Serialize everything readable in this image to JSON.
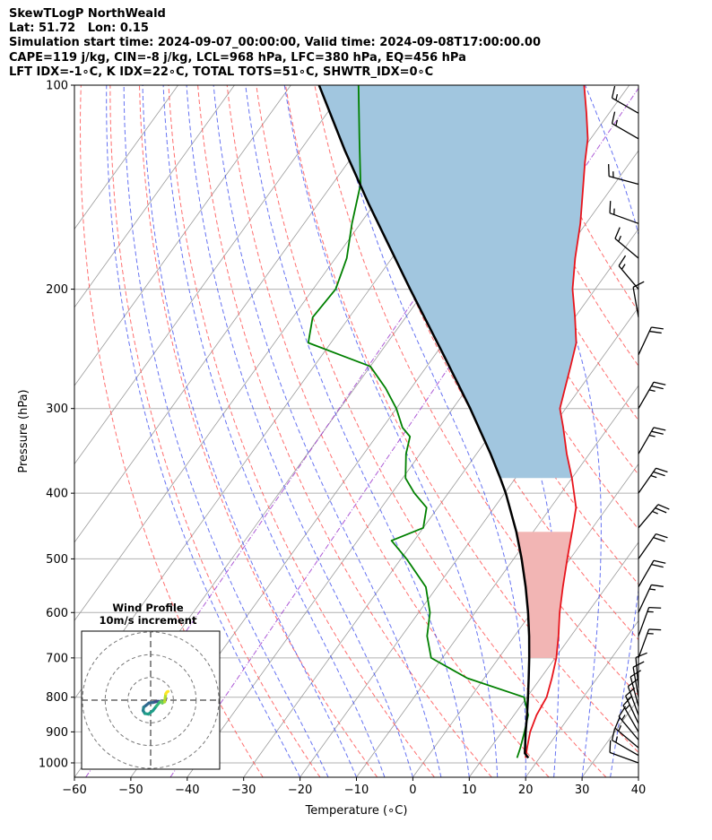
{
  "header": {
    "line1": "SkewTLogP NorthWeald",
    "line2": "Lat: 51.72   Lon: 0.15",
    "line3": "Simulation start time: 2024-09-07_00:00:00, Valid time: 2024-09-08T17:00:00.00",
    "line4": "CAPE=119 j/kg, CIN=-8 j/kg, LCL=968 hPa, LFC=380 hPa, EQ=456 hPa",
    "line5": "LFT IDX=-1∘C, K IDX=22∘C, TOTAL TOTS=51∘C, SHWTR_IDX=0∘C"
  },
  "chart_data": {
    "type": "line",
    "subtype": "skew-T log-P diagram",
    "xlabel": "Temperature (∘C)",
    "ylabel": "Pressure (hPa)",
    "xlim": [
      -60,
      40
    ],
    "ylim": [
      1050,
      100
    ],
    "x_ticks": [
      -60,
      -50,
      -40,
      -30,
      -20,
      -10,
      0,
      10,
      20,
      30,
      40
    ],
    "y_ticks": [
      1000,
      900,
      800,
      700,
      600,
      500,
      400,
      300,
      200,
      100
    ],
    "series": [
      {
        "name": "Temperature",
        "color": "#e8141c",
        "points": [
          {
            "p": 983,
            "t": 17.5
          },
          {
            "p": 950,
            "t": 16.5
          },
          {
            "p": 900,
            "t": 15.0
          },
          {
            "p": 850,
            "t": 14.0
          },
          {
            "p": 800,
            "t": 13.5
          },
          {
            "p": 750,
            "t": 12.0
          },
          {
            "p": 700,
            "t": 10.2
          },
          {
            "p": 650,
            "t": 7.8
          },
          {
            "p": 600,
            "t": 5.0
          },
          {
            "p": 550,
            "t": 2.3
          },
          {
            "p": 500,
            "t": -0.5
          },
          {
            "p": 450,
            "t": -3.5
          },
          {
            "p": 420,
            "t": -5.5
          },
          {
            "p": 380,
            "t": -10.0
          },
          {
            "p": 350,
            "t": -14.0
          },
          {
            "p": 320,
            "t": -18.0
          },
          {
            "p": 300,
            "t": -21.0
          },
          {
            "p": 280,
            "t": -22.7
          },
          {
            "p": 260,
            "t": -24.5
          },
          {
            "p": 240,
            "t": -26.5
          },
          {
            "p": 220,
            "t": -30.0
          },
          {
            "p": 200,
            "t": -34.0
          },
          {
            "p": 180,
            "t": -37.5
          },
          {
            "p": 160,
            "t": -41.0
          },
          {
            "p": 140,
            "t": -45.5
          },
          {
            "p": 130,
            "t": -48.0
          },
          {
            "p": 120,
            "t": -50.5
          },
          {
            "p": 110,
            "t": -54.0
          },
          {
            "p": 100,
            "t": -58.0
          }
        ]
      },
      {
        "name": "Dewpoint",
        "color": "#008000",
        "points": [
          {
            "p": 983,
            "t": 16.0
          },
          {
            "p": 950,
            "t": 15.3
          },
          {
            "p": 900,
            "t": 14.0
          },
          {
            "p": 850,
            "t": 12.5
          },
          {
            "p": 800,
            "t": 9.5
          },
          {
            "p": 750,
            "t": -3.0
          },
          {
            "p": 700,
            "t": -12.0
          },
          {
            "p": 650,
            "t": -15.5
          },
          {
            "p": 600,
            "t": -18.0
          },
          {
            "p": 550,
            "t": -22.0
          },
          {
            "p": 500,
            "t": -29.0
          },
          {
            "p": 470,
            "t": -34.0
          },
          {
            "p": 450,
            "t": -30.0
          },
          {
            "p": 420,
            "t": -32.0
          },
          {
            "p": 400,
            "t": -36.0
          },
          {
            "p": 380,
            "t": -39.5
          },
          {
            "p": 350,
            "t": -42.5
          },
          {
            "p": 330,
            "t": -44.0
          },
          {
            "p": 320,
            "t": -46.5
          },
          {
            "p": 300,
            "t": -50.0
          },
          {
            "p": 280,
            "t": -54.5
          },
          {
            "p": 260,
            "t": -60.0
          },
          {
            "p": 240,
            "t": -74.0
          },
          {
            "p": 220,
            "t": -76.5
          },
          {
            "p": 200,
            "t": -76.0
          },
          {
            "p": 180,
            "t": -78.0
          },
          {
            "p": 160,
            "t": -81.5
          },
          {
            "p": 140,
            "t": -85.0
          },
          {
            "p": 120,
            "t": -91.0
          },
          {
            "p": 100,
            "t": -98.0
          }
        ]
      },
      {
        "name": "Parcel profile",
        "color": "#000000",
        "points": [
          {
            "p": 983,
            "t": 18.0
          },
          {
            "p": 968,
            "t": 16.8
          },
          {
            "p": 900,
            "t": 14.2
          },
          {
            "p": 850,
            "t": 12.3
          },
          {
            "p": 800,
            "t": 10.2
          },
          {
            "p": 750,
            "t": 7.9
          },
          {
            "p": 700,
            "t": 5.4
          },
          {
            "p": 650,
            "t": 2.6
          },
          {
            "p": 600,
            "t": -0.6
          },
          {
            "p": 550,
            "t": -4.3
          },
          {
            "p": 500,
            "t": -8.6
          },
          {
            "p": 456,
            "t": -13.0
          },
          {
            "p": 400,
            "t": -19.8
          },
          {
            "p": 380,
            "t": -22.7
          },
          {
            "p": 350,
            "t": -27.5
          },
          {
            "p": 300,
            "t": -36.9
          },
          {
            "p": 250,
            "t": -48.5
          },
          {
            "p": 200,
            "t": -62.8
          },
          {
            "p": 150,
            "t": -80.9
          },
          {
            "p": 125,
            "t": -92.0
          },
          {
            "p": 100,
            "t": -105.0
          }
        ]
      }
    ],
    "shaded_areas": [
      {
        "name": "CAPE",
        "color": "#1f77b4",
        "between": [
          "Temperature",
          "Parcel profile"
        ],
        "p_range": [
          380,
          100
        ]
      },
      {
        "name": "CIN",
        "color": "#d62728",
        "between": [
          "Temperature",
          "Parcel profile"
        ],
        "p_range": [
          700,
          456
        ]
      }
    ],
    "reference_lines": {
      "isotherms_c": [
        -130,
        -120,
        -110,
        -100,
        -90,
        -80,
        -70,
        -60,
        -50,
        -40,
        -30,
        -20,
        -10,
        0,
        10,
        20,
        30,
        40
      ],
      "dry_adiabats_theta_c": [
        -30,
        -20,
        -10,
        0,
        10,
        20,
        30,
        40,
        50,
        60,
        70,
        80,
        90,
        100,
        110,
        120
      ],
      "moist_adiabats_start_c": [
        -20,
        -15,
        -10,
        -5,
        0,
        5,
        10,
        15,
        20,
        25,
        30,
        35
      ],
      "mixing_ratio_note": "purple dash-dot lines"
    },
    "wind_barbs": [
      {
        "p": 1000,
        "speed_kt": 10,
        "dir_deg": 290
      },
      {
        "p": 975,
        "speed_kt": 15,
        "dir_deg": 300
      },
      {
        "p": 950,
        "speed_kt": 15,
        "dir_deg": 310
      },
      {
        "p": 925,
        "speed_kt": 15,
        "dir_deg": 320
      },
      {
        "p": 900,
        "speed_kt": 15,
        "dir_deg": 330
      },
      {
        "p": 875,
        "speed_kt": 15,
        "dir_deg": 335
      },
      {
        "p": 850,
        "speed_kt": 10,
        "dir_deg": 340
      },
      {
        "p": 825,
        "speed_kt": 10,
        "dir_deg": 345
      },
      {
        "p": 800,
        "speed_kt": 10,
        "dir_deg": 350
      },
      {
        "p": 775,
        "speed_kt": 10,
        "dir_deg": 355
      },
      {
        "p": 700,
        "speed_kt": 15,
        "dir_deg": 20
      },
      {
        "p": 650,
        "speed_kt": 15,
        "dir_deg": 20
      },
      {
        "p": 600,
        "speed_kt": 15,
        "dir_deg": 25
      },
      {
        "p": 550,
        "speed_kt": 20,
        "dir_deg": 30
      },
      {
        "p": 500,
        "speed_kt": 20,
        "dir_deg": 35
      },
      {
        "p": 450,
        "speed_kt": 25,
        "dir_deg": 40
      },
      {
        "p": 400,
        "speed_kt": 25,
        "dir_deg": 35
      },
      {
        "p": 350,
        "speed_kt": 25,
        "dir_deg": 30
      },
      {
        "p": 300,
        "speed_kt": 25,
        "dir_deg": 30
      },
      {
        "p": 250,
        "speed_kt": 20,
        "dir_deg": 25
      },
      {
        "p": 220,
        "speed_kt": 10,
        "dir_deg": 350
      },
      {
        "p": 200,
        "speed_kt": 15,
        "dir_deg": 320
      },
      {
        "p": 180,
        "speed_kt": 15,
        "dir_deg": 310
      },
      {
        "p": 160,
        "speed_kt": 15,
        "dir_deg": 290
      },
      {
        "p": 140,
        "speed_kt": 15,
        "dir_deg": 285
      },
      {
        "p": 120,
        "speed_kt": 15,
        "dir_deg": 300
      },
      {
        "p": 110,
        "speed_kt": 15,
        "dir_deg": 300
      }
    ],
    "inset": {
      "title_line1": "Wind Profile",
      "title_line2": "10m/s increment",
      "rings_ms": [
        10,
        20,
        30
      ],
      "hodograph": [
        {
          "u": 13.0,
          "v": 1.5
        },
        {
          "u": 12.5,
          "v": 0.0
        },
        {
          "u": 11.5,
          "v": -1.5
        },
        {
          "u": 9.0,
          "v": -1.0
        },
        {
          "u": 6.0,
          "v": -1.0
        },
        {
          "u": 2.0,
          "v": -2.0
        },
        {
          "u": -1.5,
          "v": -2.5
        },
        {
          "u": -4.0,
          "v": -4.5
        },
        {
          "u": -6.0,
          "v": -6.0
        },
        {
          "u": -6.5,
          "v": -9.0
        },
        {
          "u": -5.0,
          "v": -11.5
        },
        {
          "u": -2.0,
          "v": -12.0
        },
        {
          "u": 2.0,
          "v": -9.0
        },
        {
          "u": 5.0,
          "v": -5.0
        },
        {
          "u": 7.5,
          "v": -2.0
        },
        {
          "u": 9.0,
          "v": -1.0
        },
        {
          "u": 10.0,
          "v": -2.5
        },
        {
          "u": 11.5,
          "v": -1.0
        },
        {
          "u": 12.0,
          "v": -1.5
        },
        {
          "u": 12.5,
          "v": 2.0
        },
        {
          "u": 13.0,
          "v": 5.5
        },
        {
          "u": 14.0,
          "v": 7.0
        },
        {
          "u": 15.0,
          "v": 7.5
        }
      ]
    }
  },
  "colors": {
    "grid": "#b0b0b0",
    "isotherm": "#9b9b9b",
    "dry_adiabat": "#ff5555",
    "moist_adiabat": "#3344ee",
    "mixing_ratio": "#9932cc",
    "cape_fill": "#a1c6df",
    "cin_fill": "#f2b5b4"
  }
}
